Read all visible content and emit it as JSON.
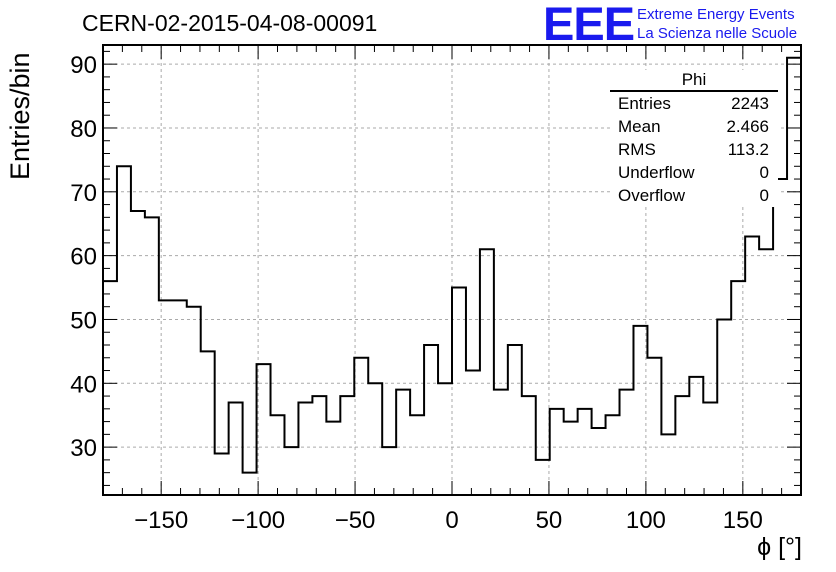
{
  "header": {
    "title": "CERN-02-2015-04-08-00091",
    "logo_mark": "EEE",
    "logo_line1": "Extreme Energy Events",
    "logo_line2": "La Scienza nelle Scuole"
  },
  "stats_box": {
    "title": "Phi",
    "rows": [
      {
        "label": "Entries",
        "value": "2243"
      },
      {
        "label": "Mean",
        "value": "2.466"
      },
      {
        "label": "RMS",
        "value": "113.2"
      },
      {
        "label": "Underflow",
        "value": "0"
      },
      {
        "label": "Overflow",
        "value": "0"
      }
    ]
  },
  "chart_data": {
    "type": "bar",
    "style": "step-histogram",
    "xlabel": "ϕ [°]",
    "ylabel": "Entries/bin",
    "xlim": [
      -180,
      180
    ],
    "ylim": [
      22.5,
      93
    ],
    "xticks": [
      -150,
      -100,
      -50,
      0,
      50,
      100,
      150
    ],
    "yticks": [
      30,
      40,
      50,
      60,
      70,
      80,
      90
    ],
    "grid": true,
    "bin_width": 7.2,
    "bin_edges_start": -180,
    "values": [
      56,
      74,
      67,
      66,
      53,
      53,
      52,
      45,
      29,
      37,
      26,
      43,
      35,
      30,
      37,
      38,
      34,
      38,
      44,
      40,
      30,
      39,
      35,
      46,
      40,
      55,
      42,
      61,
      39,
      46,
      38,
      28,
      36,
      34,
      36,
      33,
      35,
      39,
      49,
      44,
      32,
      38,
      41,
      37,
      50,
      56,
      63,
      61,
      72,
      91
    ],
    "line_color": "#000000",
    "grid_color": "#aaaaaa"
  }
}
